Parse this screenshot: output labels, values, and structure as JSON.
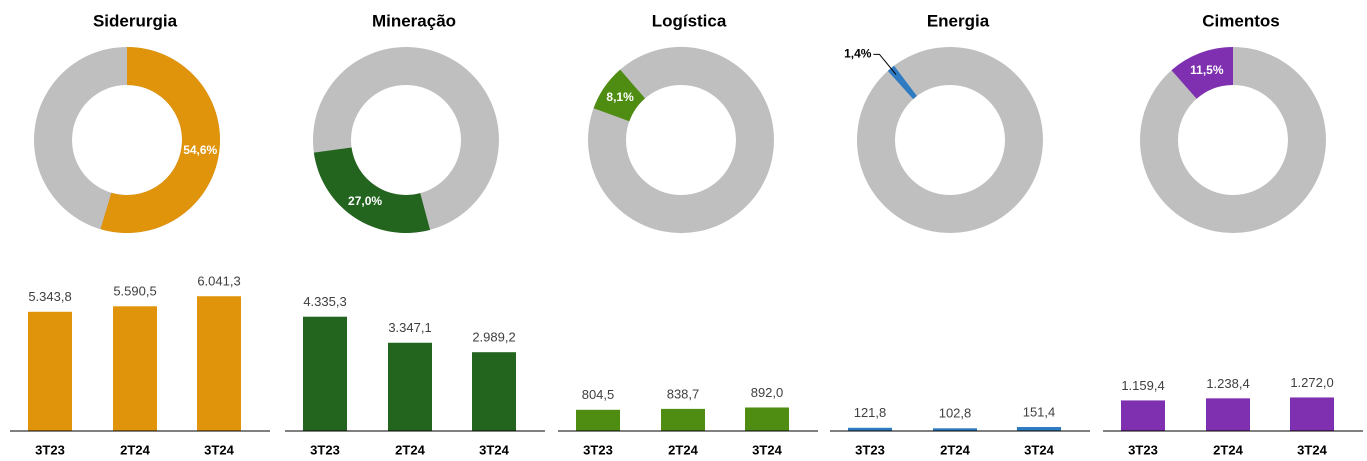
{
  "chart_data": [
    {
      "type": "pie",
      "title": "Siderurgia",
      "values": [
        54.6
      ],
      "value_labels": [
        "54,6%"
      ],
      "color": "#E0940C",
      "rest_color": "#BFBFBF"
    },
    {
      "type": "pie",
      "title": "Mineração",
      "values": [
        27.0
      ],
      "value_labels": [
        "27,0%"
      ],
      "color": "#23651F",
      "rest_color": "#BFBFBF"
    },
    {
      "type": "pie",
      "title": "Logística",
      "values": [
        8.1
      ],
      "value_labels": [
        "8,1%"
      ],
      "color": "#4E8C12",
      "rest_color": "#BFBFBF"
    },
    {
      "type": "pie",
      "title": "Energia",
      "values": [
        1.4
      ],
      "value_labels": [
        "1,4%"
      ],
      "color": "#2E7BC2",
      "rest_color": "#BFBFBF"
    },
    {
      "type": "pie",
      "title": "Cimentos",
      "values": [
        11.5
      ],
      "value_labels": [
        "11,5%"
      ],
      "color": "#7E30B0",
      "rest_color": "#BFBFBF"
    },
    {
      "type": "bar",
      "categories": [
        "3T23",
        "2T24",
        "3T24"
      ],
      "values": [
        5343.8,
        5590.5,
        6041.3
      ],
      "value_labels": [
        "5.343,8",
        "5.590,5",
        "6.041,3"
      ],
      "color": "#E0940C",
      "ylim": [
        0,
        6500
      ]
    },
    {
      "type": "bar",
      "categories": [
        "3T23",
        "2T24",
        "3T24"
      ],
      "values": [
        4335.3,
        3347.1,
        2989.2
      ],
      "value_labels": [
        "4.335,3",
        "3.347,1",
        "2.989,2"
      ],
      "color": "#23651F",
      "ylim": [
        0,
        5500
      ]
    },
    {
      "type": "bar",
      "categories": [
        "3T23",
        "2T24",
        "3T24"
      ],
      "values": [
        804.5,
        838.7,
        892.0
      ],
      "value_labels": [
        "804,5",
        "838,7",
        "892,0"
      ],
      "color": "#4E8C12",
      "ylim": [
        0,
        5500
      ]
    },
    {
      "type": "bar",
      "categories": [
        "3T23",
        "2T24",
        "3T24"
      ],
      "values": [
        121.8,
        102.8,
        151.4
      ],
      "value_labels": [
        "121,8",
        "102,8",
        "151,4"
      ],
      "color": "#2E7BC2",
      "ylim": [
        0,
        5500
      ]
    },
    {
      "type": "bar",
      "categories": [
        "3T23",
        "2T24",
        "3T24"
      ],
      "values": [
        1159.4,
        1238.4,
        1272.0
      ],
      "value_labels": [
        "1.159,4",
        "1.238,4",
        "1.272,0"
      ],
      "color": "#7E30B0",
      "ylim": [
        0,
        5500
      ]
    }
  ]
}
